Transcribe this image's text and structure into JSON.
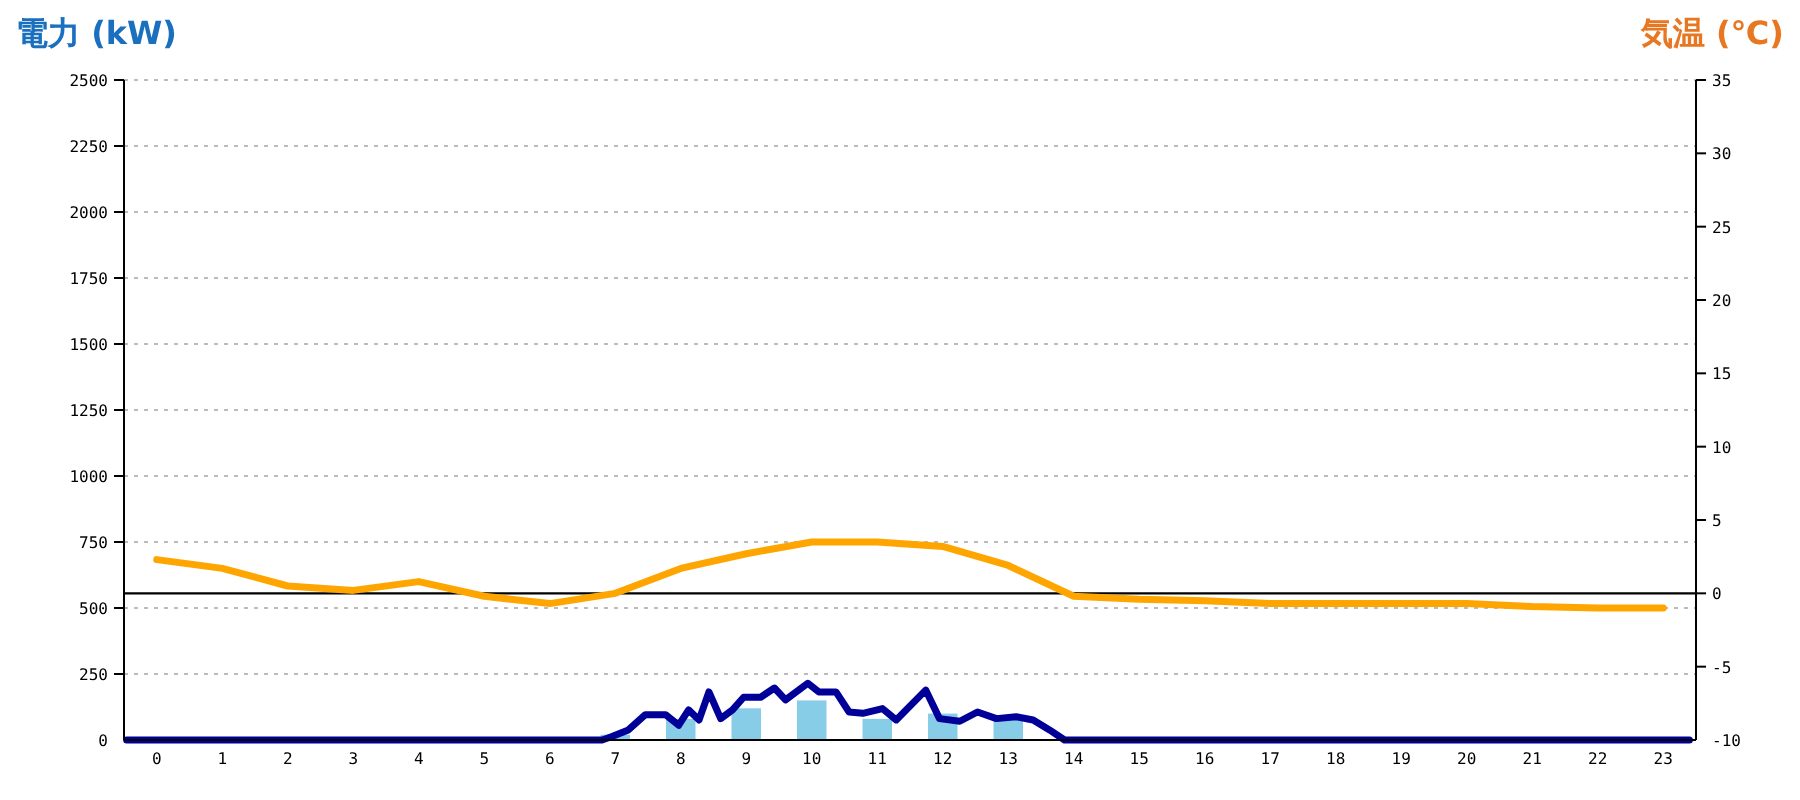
{
  "chart_data": {
    "type": "bar",
    "ylabel": "電力 (kW)",
    "y2label": "気温 (℃)",
    "x": [
      0,
      1,
      2,
      3,
      4,
      5,
      6,
      7,
      8,
      9,
      10,
      11,
      12,
      13,
      14,
      15,
      16,
      17,
      18,
      19,
      20,
      21,
      22,
      23
    ],
    "xlim": [
      -0.5,
      23.5
    ],
    "xticks": [
      0,
      1,
      2,
      3,
      4,
      5,
      6,
      7,
      8,
      9,
      10,
      11,
      12,
      13,
      14,
      15,
      16,
      17,
      18,
      19,
      20,
      21,
      22,
      23
    ],
    "series": [
      {
        "color": "#87cde8",
        "values": [
          0,
          0,
          0,
          0,
          0,
          0,
          0,
          20,
          80,
          120,
          150,
          80,
          100,
          80,
          0,
          0,
          0,
          0,
          0,
          0,
          0,
          0,
          0,
          0
        ]
      },
      {
        "type": "line",
        "color": "#000099",
        "x": [
          -0.46,
          6.8,
          6.95,
          7.2,
          7.46,
          7.77,
          7.97,
          8.12,
          8.28,
          8.43,
          8.61,
          8.79,
          8.96,
          9.22,
          9.43,
          9.6,
          9.94,
          10.11,
          10.37,
          10.57,
          10.78,
          11.08,
          11.29,
          11.74,
          11.95,
          12.26,
          12.53,
          12.82,
          13.12,
          13.38,
          13.63,
          13.86,
          23.4
        ],
        "values": [
          0,
          0,
          13,
          38,
          96,
          96,
          56,
          114,
          76,
          182,
          81,
          114,
          162,
          162,
          197,
          152,
          215,
          182,
          182,
          106,
          101,
          119,
          76,
          189,
          81,
          71,
          106,
          81,
          88,
          76,
          38,
          0,
          0
        ]
      },
      {
        "type": "line",
        "axis": "y2",
        "color": "#ffa500",
        "values": [
          2.3,
          1.7,
          0.5,
          0.2,
          0.8,
          -0.2,
          -0.7,
          0,
          1.7,
          2.7,
          3.5,
          3.5,
          3.2,
          1.9,
          -0.2,
          -0.4,
          -0.5,
          -0.7,
          -0.7,
          -0.7,
          -0.7,
          -0.9,
          -1.0,
          -1.0
        ]
      }
    ],
    "ylim": [
      0,
      2500
    ],
    "yticks": [
      0,
      250,
      500,
      750,
      1000,
      1250,
      1500,
      1750,
      2000,
      2250,
      2500
    ],
    "y2lim": [
      -10,
      35
    ],
    "y2ticks": [
      -10,
      -5,
      0,
      5,
      10,
      15,
      20,
      25,
      30,
      35
    ],
    "ref_lines": [
      {
        "axis": "y2",
        "value": 0,
        "color": "#000000"
      }
    ],
    "grid": "y",
    "marker": "none",
    "line_style": "solid"
  }
}
